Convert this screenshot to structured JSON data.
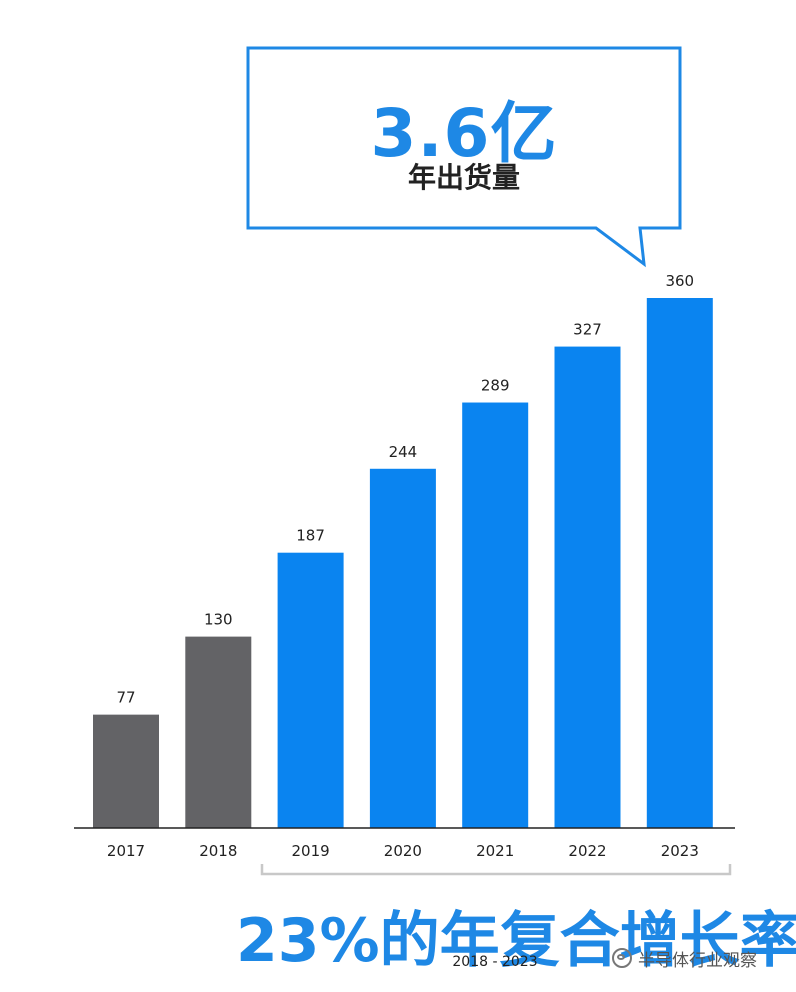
{
  "callout": {
    "value": "3.6亿",
    "label": "年出货量"
  },
  "cagr": {
    "text": "23%的年复合增长率",
    "range": "2018 - 2023"
  },
  "watermark": {
    "text": "半导体行业观察"
  },
  "colors": {
    "historical": "#636366",
    "forecast": "#0a84f0",
    "accent": "#1e88e5",
    "axis": "#222222"
  },
  "chart_data": {
    "type": "bar",
    "categories": [
      "2017",
      "2018",
      "2019",
      "2020",
      "2021",
      "2022",
      "2023"
    ],
    "values": [
      77,
      130,
      187,
      244,
      289,
      327,
      360
    ],
    "value_labels": [
      "77",
      "130",
      "187",
      "244",
      "289",
      "327",
      "360"
    ],
    "bar_groups": [
      "historical",
      "historical",
      "forecast",
      "forecast",
      "forecast",
      "forecast",
      "forecast"
    ],
    "title": "",
    "xlabel": "",
    "ylabel": "",
    "ylim": [
      0,
      360
    ],
    "grid": false,
    "legend": "none"
  }
}
